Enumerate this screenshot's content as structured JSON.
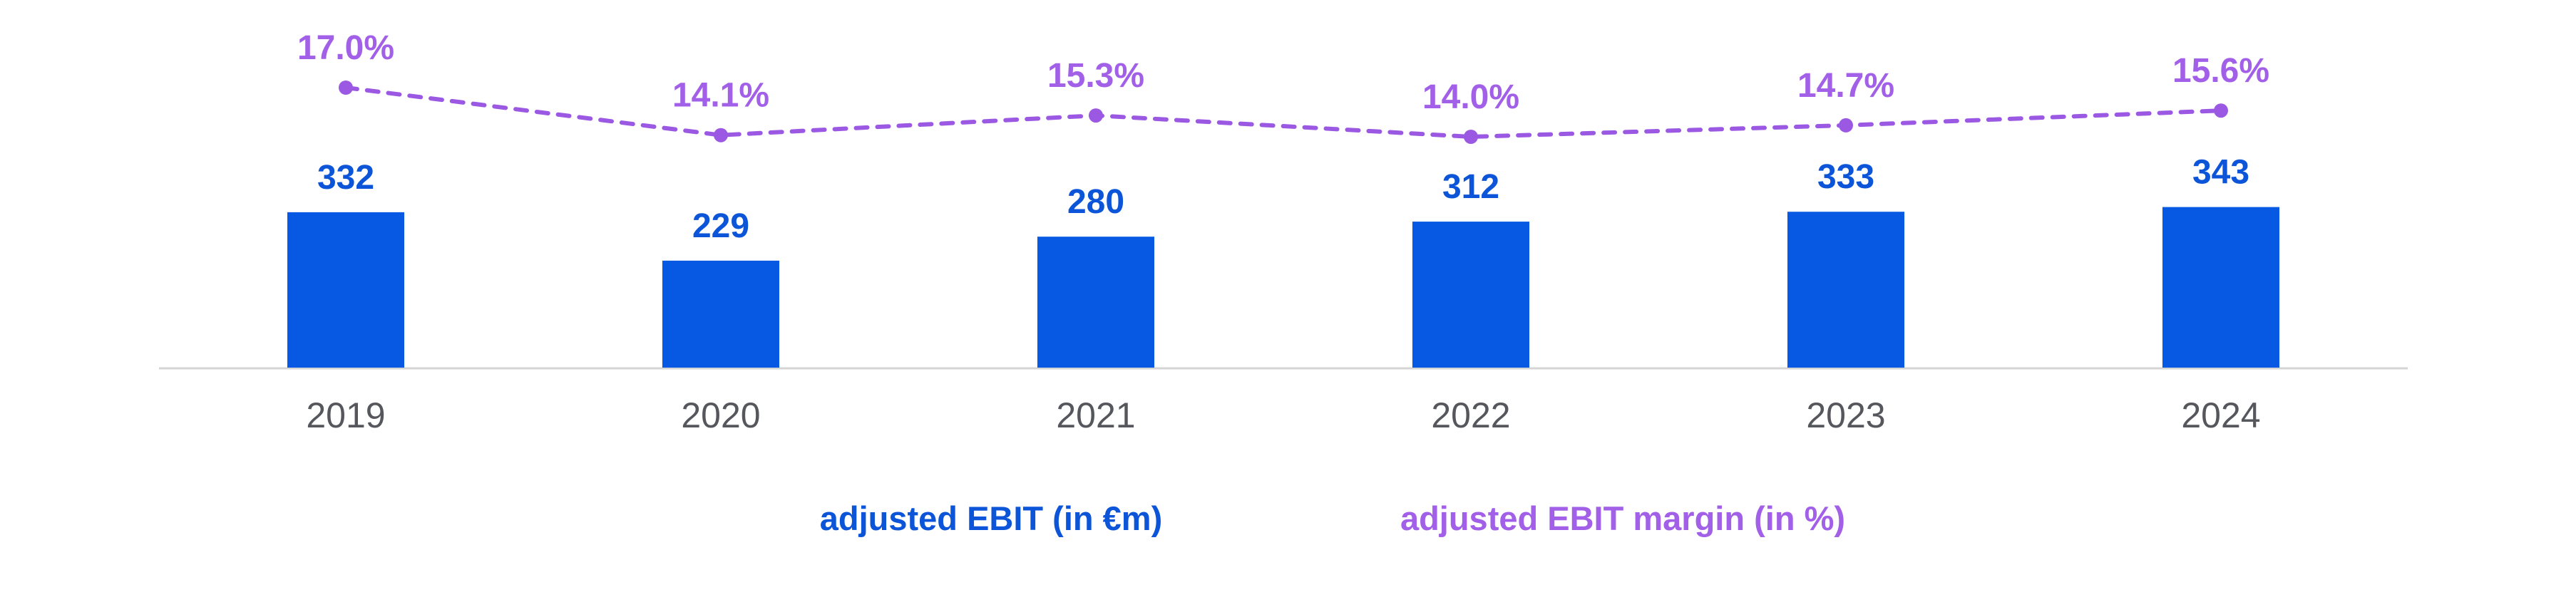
{
  "chart_data": {
    "type": "bar+line combo",
    "categories": [
      "2019",
      "2020",
      "2021",
      "2022",
      "2023",
      "2024"
    ],
    "series": [
      {
        "name": "adjusted EBIT (in €m)",
        "type": "bar",
        "values": [
          332,
          229,
          280,
          312,
          333,
          343
        ],
        "value_labels": [
          "332",
          "229",
          "280",
          "312",
          "333",
          "343"
        ],
        "color": "#0759E3",
        "label_color": "#0C55D8"
      },
      {
        "name": "adjusted EBIT margin (in %)",
        "type": "line",
        "line_style": "dashed",
        "values": [
          17.0,
          14.1,
          15.3,
          14.0,
          14.7,
          15.6
        ],
        "point_labels": [
          "17.0%",
          "14.1%",
          "15.3%",
          "14.0%",
          "14.7%",
          "15.6%"
        ],
        "color": "#9B59E3",
        "label_color": "#A25FE8"
      }
    ],
    "title": "",
    "xlabel": "",
    "ylabel": "",
    "axis_line_color": "#D4D4D4",
    "tick_label_color": "#55575C",
    "grid": false,
    "y_axis_ticks": "none (data labels shown directly above bars and points)",
    "legend_position": "bottom-center, text-only colored labels"
  },
  "legend": {
    "ebit_label": "adjusted EBIT (in €m)",
    "margin_label": "adjusted EBIT margin (in %)"
  }
}
